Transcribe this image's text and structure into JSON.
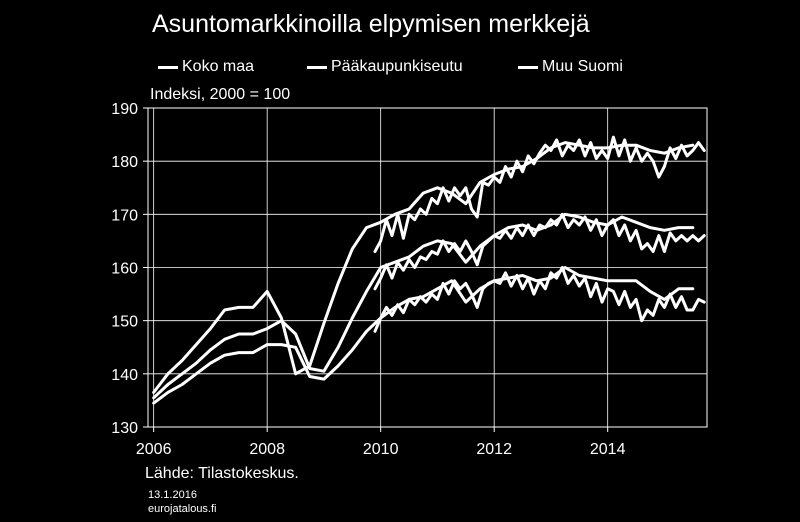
{
  "title": "Asuntomarkkinoilla elpymisen merkkejä",
  "index_note": "Indeksi, 2000 = 100",
  "source": "Lähde: Tilastokeskus.",
  "date": "13.1.2016",
  "site": "eurojatalous.fi",
  "chart_data": {
    "type": "line",
    "title": "Asuntomarkkinoilla elpymisen merkkejä",
    "ylabel": "Indeksi, 2000 = 100",
    "xlim": [
      2005.9,
      2015.75
    ],
    "ylim": [
      130,
      190
    ],
    "y_ticks": [
      130,
      140,
      150,
      160,
      170,
      180,
      190
    ],
    "x_ticks": [
      2006,
      2008,
      2010,
      2012,
      2014
    ],
    "grid": true,
    "legend_position": "top",
    "series": [
      {
        "name": "Koko maa",
        "x": [
          2006.0,
          2006.25,
          2006.5,
          2006.75,
          2007.0,
          2007.25,
          2007.5,
          2007.75,
          2008.0,
          2008.25,
          2008.5,
          2008.75,
          2009.0,
          2009.25,
          2009.5,
          2009.75,
          2010.0,
          2010.25,
          2010.5,
          2010.75,
          2011.0,
          2011.25,
          2011.5,
          2011.75,
          2012.0,
          2012.25,
          2012.5,
          2012.75,
          2013.0,
          2013.25,
          2013.5,
          2013.75,
          2014.0,
          2014.25,
          2014.5,
          2014.75,
          2015.0,
          2015.25,
          2015.5
        ],
        "values": [
          135.5,
          138,
          140,
          142,
          144.5,
          146.5,
          147.5,
          147.5,
          148.5,
          150,
          147.5,
          141,
          140.5,
          145,
          150.5,
          155.5,
          160,
          161,
          162,
          164,
          165,
          164.5,
          161,
          164,
          166,
          167.5,
          168,
          167,
          168,
          170,
          169.5,
          168.5,
          168,
          169.5,
          168.5,
          167.5,
          167,
          167.5,
          167.5
        ]
      },
      {
        "name": "Pääkaupunkiseutu",
        "x": [
          2006.0,
          2006.25,
          2006.5,
          2006.75,
          2007.0,
          2007.25,
          2007.5,
          2007.75,
          2008.0,
          2008.25,
          2008.5,
          2008.75,
          2009.0,
          2009.25,
          2009.5,
          2009.75,
          2010.0,
          2010.25,
          2010.5,
          2010.75,
          2011.0,
          2011.25,
          2011.5,
          2011.75,
          2012.0,
          2012.25,
          2012.5,
          2012.75,
          2013.0,
          2013.25,
          2013.5,
          2013.75,
          2014.0,
          2014.25,
          2014.5,
          2014.75,
          2015.0,
          2015.25,
          2015.5
        ],
        "values": [
          136.5,
          140,
          142.5,
          145.5,
          148.5,
          152,
          152.5,
          152.5,
          155.5,
          150.5,
          140,
          141.5,
          149.5,
          157,
          163.5,
          167.5,
          168.5,
          170,
          171,
          174,
          175,
          174,
          172,
          176,
          177.5,
          178.5,
          179,
          180.5,
          182.5,
          183.5,
          183,
          182.5,
          182.5,
          183,
          183,
          182,
          181.5,
          182.5,
          183
        ]
      },
      {
        "name": "Muu Suomi",
        "x": [
          2006.0,
          2006.25,
          2006.5,
          2006.75,
          2007.0,
          2007.25,
          2007.5,
          2007.75,
          2008.0,
          2008.25,
          2008.5,
          2008.75,
          2009.0,
          2009.25,
          2009.5,
          2009.75,
          2010.0,
          2010.25,
          2010.5,
          2010.75,
          2011.0,
          2011.25,
          2011.5,
          2011.75,
          2012.0,
          2012.25,
          2012.5,
          2012.75,
          2013.0,
          2013.25,
          2013.5,
          2013.75,
          2014.0,
          2014.25,
          2014.5,
          2014.75,
          2015.0,
          2015.25,
          2015.5
        ],
        "values": [
          134.5,
          136.5,
          138,
          140,
          142,
          143.5,
          144,
          144,
          145.5,
          145.5,
          145,
          139.5,
          139,
          141.5,
          144.5,
          148,
          150.5,
          152.5,
          154,
          154.5,
          156,
          157.5,
          153.5,
          156,
          157.5,
          158,
          158.5,
          157.5,
          158,
          160,
          158.5,
          158,
          157.5,
          157.5,
          157.5,
          155.5,
          154,
          156,
          156
        ]
      },
      {
        "name": "",
        "x": [
          2009.9,
          2010.0,
          2010.1,
          2010.2,
          2010.3,
          2010.4,
          2010.5,
          2010.6,
          2010.7,
          2010.8,
          2010.9,
          2011.0,
          2011.1,
          2011.2,
          2011.3,
          2011.4,
          2011.5,
          2011.6,
          2011.7,
          2011.8,
          2011.9,
          2012.0,
          2012.1,
          2012.2,
          2012.3,
          2012.4,
          2012.5,
          2012.6,
          2012.7,
          2012.8,
          2012.9,
          2013.0,
          2013.1,
          2013.2,
          2013.3,
          2013.4,
          2013.5,
          2013.6,
          2013.7,
          2013.8,
          2013.9,
          2014.0,
          2014.1,
          2014.2,
          2014.3,
          2014.4,
          2014.5,
          2014.6,
          2014.7,
          2014.8,
          2014.9,
          2015.0,
          2015.1,
          2015.2,
          2015.3,
          2015.4,
          2015.5,
          2015.6,
          2015.7
        ],
        "values": [
          163,
          165,
          169,
          166,
          170,
          165.5,
          170,
          169,
          171,
          170,
          173,
          172,
          175,
          172.5,
          175,
          173.5,
          175,
          171,
          169.5,
          176,
          175.5,
          177,
          176,
          179,
          177,
          180,
          178,
          181,
          179.5,
          181.5,
          183,
          182,
          184,
          181,
          183,
          182,
          184,
          181,
          183.5,
          180.5,
          182,
          180.5,
          184.5,
          181,
          184,
          180,
          182.5,
          180,
          181.5,
          180,
          177,
          179,
          182.5,
          180.5,
          183,
          181,
          182,
          183.5,
          182
        ]
      },
      {
        "name": "",
        "x": [
          2009.9,
          2010.0,
          2010.1,
          2010.2,
          2010.3,
          2010.4,
          2010.5,
          2010.6,
          2010.7,
          2010.8,
          2010.9,
          2011.0,
          2011.1,
          2011.2,
          2011.3,
          2011.4,
          2011.5,
          2011.6,
          2011.7,
          2011.8,
          2011.9,
          2012.0,
          2012.1,
          2012.2,
          2012.3,
          2012.4,
          2012.5,
          2012.6,
          2012.7,
          2012.8,
          2012.9,
          2013.0,
          2013.1,
          2013.2,
          2013.3,
          2013.4,
          2013.5,
          2013.6,
          2013.7,
          2013.8,
          2013.9,
          2014.0,
          2014.1,
          2014.2,
          2014.3,
          2014.4,
          2014.5,
          2014.6,
          2014.7,
          2014.8,
          2014.9,
          2015.0,
          2015.1,
          2015.2,
          2015.3,
          2015.4,
          2015.5,
          2015.6,
          2015.7
        ],
        "values": [
          156,
          158,
          160.5,
          158,
          161,
          159.5,
          161.5,
          160,
          162,
          161.5,
          163,
          162.5,
          165,
          163,
          164.5,
          163,
          165,
          163,
          160.5,
          164,
          165,
          166,
          165.5,
          167,
          165.5,
          167.5,
          166,
          168,
          166,
          168,
          167.5,
          169,
          168,
          170,
          167.5,
          169,
          168,
          169.5,
          167,
          169,
          166,
          168,
          169,
          166,
          168,
          165,
          167,
          163.5,
          164.5,
          163,
          166,
          163,
          166.5,
          165,
          166,
          165,
          166,
          165,
          166
        ]
      },
      {
        "name": "",
        "x": [
          2009.9,
          2010.0,
          2010.1,
          2010.2,
          2010.3,
          2010.4,
          2010.5,
          2010.6,
          2010.7,
          2010.8,
          2010.9,
          2011.0,
          2011.1,
          2011.2,
          2011.3,
          2011.4,
          2011.5,
          2011.6,
          2011.7,
          2011.8,
          2011.9,
          2012.0,
          2012.1,
          2012.2,
          2012.3,
          2012.4,
          2012.5,
          2012.6,
          2012.7,
          2012.8,
          2012.9,
          2013.0,
          2013.1,
          2013.2,
          2013.3,
          2013.4,
          2013.5,
          2013.6,
          2013.7,
          2013.8,
          2013.9,
          2014.0,
          2014.1,
          2014.2,
          2014.3,
          2014.4,
          2014.5,
          2014.6,
          2014.7,
          2014.8,
          2014.9,
          2015.0,
          2015.1,
          2015.2,
          2015.3,
          2015.4,
          2015.5,
          2015.6,
          2015.7
        ],
        "values": [
          148,
          150.5,
          152.5,
          151,
          153,
          151.5,
          154,
          153,
          154.5,
          153.5,
          155,
          154,
          157,
          155,
          157.5,
          156,
          157,
          155,
          152.5,
          156,
          157,
          157.5,
          157,
          159,
          156.5,
          158.5,
          156,
          158,
          155,
          157.5,
          156,
          159,
          158,
          160,
          157,
          158.5,
          156.5,
          158,
          154.5,
          157,
          153.5,
          156,
          155.5,
          153,
          155.5,
          152.5,
          154,
          150,
          152,
          151,
          154,
          152.5,
          155,
          152.5,
          154.5,
          152,
          152,
          154,
          153.5
        ]
      }
    ]
  }
}
